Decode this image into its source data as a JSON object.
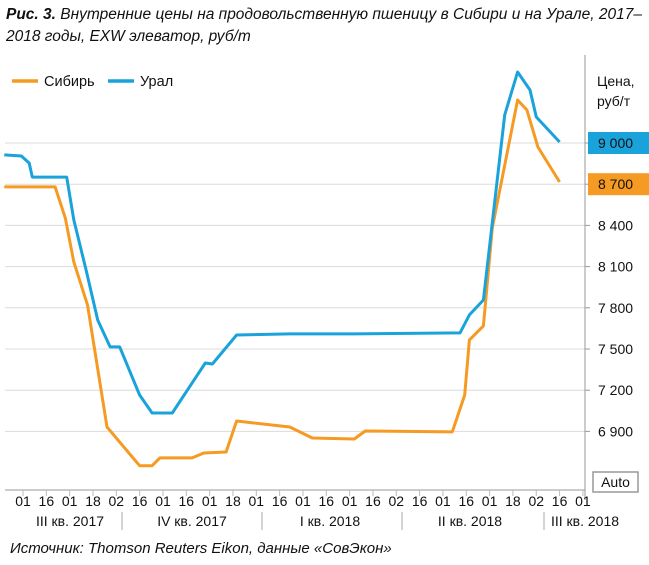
{
  "title": {
    "prefix": "Рис. 3.",
    "text": " Внутренние цены на продовольственную пшеницу в Сибири и на Урале, 2017–2018 годы, EXW элеватор, руб/т"
  },
  "source": "Источник: Thomson Reuters Eikon, данные «СовЭкон»",
  "auto_label": "Auto",
  "chart_data": {
    "type": "line",
    "ylabel": "Цена, руб/т",
    "ylim": [
      6550,
      9600
    ],
    "yticks": [
      6900,
      7200,
      7500,
      7800,
      8100,
      8400,
      8700,
      9000
    ],
    "ytick_labels": [
      "6 900",
      "7 200",
      "7 500",
      "7 800",
      "8 100",
      "8 400",
      "8 700",
      "9 000"
    ],
    "grid": "horizontal",
    "legend": "top-left",
    "xticks": [
      {
        "date": "2017-07-01",
        "label": "01"
      },
      {
        "date": "2017-07-16",
        "label": "16"
      },
      {
        "date": "2017-08-01",
        "label": "01"
      },
      {
        "date": "2017-08-18",
        "label": "18"
      },
      {
        "date": "2017-09-02",
        "label": "02"
      },
      {
        "date": "2017-09-16",
        "label": "16"
      },
      {
        "date": "2017-10-01",
        "label": "01"
      },
      {
        "date": "2017-10-16",
        "label": "16"
      },
      {
        "date": "2017-11-01",
        "label": "01"
      },
      {
        "date": "2017-11-18",
        "label": "18"
      },
      {
        "date": "2017-12-01",
        "label": "01"
      },
      {
        "date": "2017-12-16",
        "label": "16"
      },
      {
        "date": "2018-01-01",
        "label": "01"
      },
      {
        "date": "2018-01-16",
        "label": "16"
      },
      {
        "date": "2018-02-01",
        "label": "01"
      },
      {
        "date": "2018-02-16",
        "label": "16"
      },
      {
        "date": "2018-03-02",
        "label": "02"
      },
      {
        "date": "2018-03-16",
        "label": "16"
      },
      {
        "date": "2018-04-01",
        "label": "01"
      },
      {
        "date": "2018-04-16",
        "label": "16"
      },
      {
        "date": "2018-05-01",
        "label": "01"
      },
      {
        "date": "2018-05-18",
        "label": "18"
      },
      {
        "date": "2018-06-02",
        "label": "02"
      },
      {
        "date": "2018-06-16",
        "label": "16"
      },
      {
        "date": "2018-07-01",
        "label": "01"
      }
    ],
    "quarters": [
      "III кв. 2017",
      "IV кв. 2017",
      "I кв. 2018",
      "II кв. 2018",
      "III кв. 2018"
    ],
    "series": [
      {
        "name": "Сибирь",
        "color": "#f59a23",
        "last_value_label": "8 700",
        "points": [
          [
            "2017-06-19",
            8680
          ],
          [
            "2017-07-22",
            8680
          ],
          [
            "2017-07-29",
            8454
          ],
          [
            "2017-08-04",
            8134
          ],
          [
            "2017-08-14",
            7821
          ],
          [
            "2017-08-27",
            6932
          ],
          [
            "2017-09-16",
            6650
          ],
          [
            "2017-09-24",
            6650
          ],
          [
            "2017-09-29",
            6707
          ],
          [
            "2017-10-20",
            6707
          ],
          [
            "2017-10-28",
            6743
          ],
          [
            "2017-11-13",
            6750
          ],
          [
            "2017-11-20",
            6976
          ],
          [
            "2017-12-23",
            6932
          ],
          [
            "2018-01-07",
            6852
          ],
          [
            "2018-02-04",
            6845
          ],
          [
            "2018-02-11",
            6903
          ],
          [
            "2018-04-07",
            6896
          ],
          [
            "2018-04-15",
            7165
          ],
          [
            "2018-04-18",
            7566
          ],
          [
            "2018-04-27",
            7668
          ],
          [
            "2018-05-03",
            8381
          ],
          [
            "2018-05-21",
            9313
          ],
          [
            "2018-05-27",
            9240
          ],
          [
            "2018-06-03",
            8971
          ],
          [
            "2018-06-16",
            8716
          ]
        ]
      },
      {
        "name": "Урал",
        "color": "#1aa3db",
        "last_value_label": "9 000",
        "points": [
          [
            "2017-06-19",
            8913
          ],
          [
            "2017-06-30",
            8905
          ],
          [
            "2017-07-05",
            8854
          ],
          [
            "2017-07-07",
            8752
          ],
          [
            "2017-07-30",
            8752
          ],
          [
            "2017-08-04",
            8440
          ],
          [
            "2017-08-13",
            8075
          ],
          [
            "2017-08-21",
            7711
          ],
          [
            "2017-08-29",
            7515
          ],
          [
            "2017-09-04",
            7515
          ],
          [
            "2017-09-16",
            7165
          ],
          [
            "2017-09-24",
            7034
          ],
          [
            "2017-10-07",
            7034
          ],
          [
            "2017-10-29",
            7398
          ],
          [
            "2017-11-03",
            7391
          ],
          [
            "2017-11-20",
            7602
          ],
          [
            "2017-12-23",
            7610
          ],
          [
            "2018-02-04",
            7610
          ],
          [
            "2018-04-12",
            7617
          ],
          [
            "2018-04-18",
            7748
          ],
          [
            "2018-04-27",
            7857
          ],
          [
            "2018-05-12",
            9204
          ],
          [
            "2018-05-21",
            9517
          ],
          [
            "2018-05-29",
            9386
          ],
          [
            "2018-06-02",
            9189
          ],
          [
            "2018-06-16",
            9007
          ]
        ]
      }
    ]
  }
}
